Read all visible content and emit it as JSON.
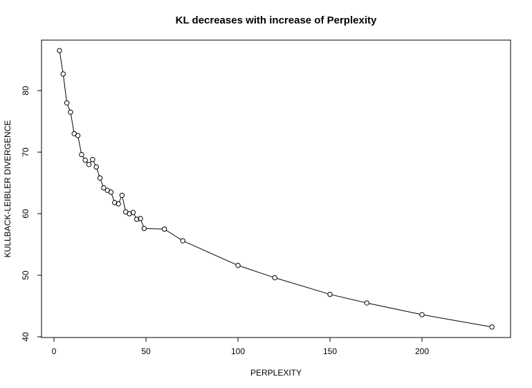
{
  "chart_data": {
    "type": "line",
    "title": "KL decreases with increase of Perplexity",
    "xlabel": "PERPLEXITY",
    "ylabel": "KULLBACK-LEIBLER DIVERGENCE",
    "xlim": [
      0,
      240
    ],
    "ylim": [
      40,
      87
    ],
    "xticks": [
      0,
      50,
      100,
      150,
      200
    ],
    "yticks": [
      40,
      50,
      60,
      70,
      80
    ],
    "grid": false,
    "series": [
      {
        "marker": "open-circle",
        "color": "#000000",
        "x": [
          3,
          5,
          7,
          9,
          11,
          13,
          15,
          17,
          19,
          21,
          23,
          25,
          27,
          29,
          31,
          33,
          35,
          37,
          39,
          41,
          43,
          45,
          47,
          49,
          60,
          70,
          100,
          120,
          150,
          170,
          200,
          238
        ],
        "y": [
          86.5,
          82.7,
          78.0,
          76.5,
          73.0,
          72.7,
          69.6,
          68.7,
          68.0,
          68.8,
          67.6,
          65.8,
          64.2,
          63.8,
          63.5,
          61.8,
          61.6,
          63.0,
          60.3,
          60.0,
          60.2,
          59.1,
          59.2,
          57.6,
          57.5,
          55.6,
          51.6,
          49.6,
          46.9,
          45.5,
          43.6,
          41.6
        ]
      }
    ]
  }
}
